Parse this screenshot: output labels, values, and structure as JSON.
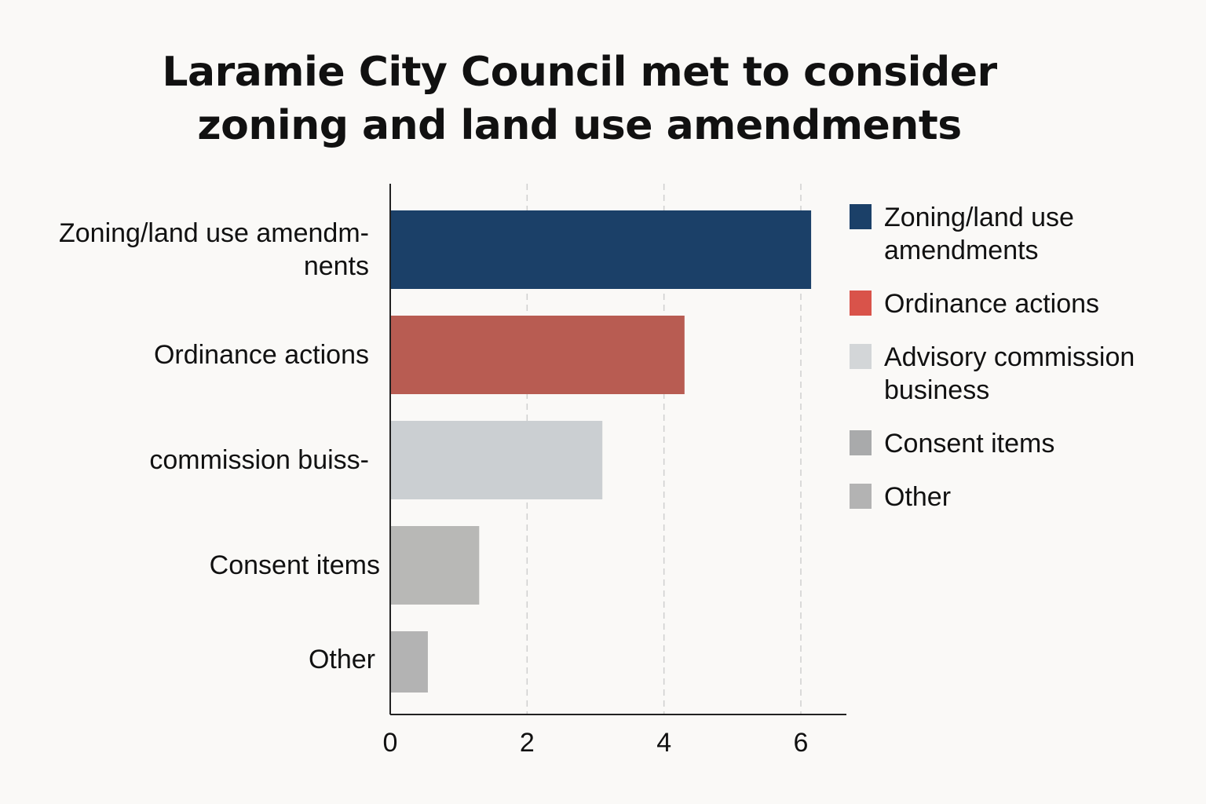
{
  "chart_data": {
    "type": "bar",
    "orientation": "horizontal",
    "title_lines": [
      "Laramie City Council met to consider",
      "zoning and land use amendments"
    ],
    "categories": [
      "Zoning/land use amendm-\nnents",
      "Ordinance actions",
      "commission buiss-",
      "Consent items",
      "Other"
    ],
    "values": [
      6.15,
      4.3,
      3.1,
      1.3,
      0.55
    ],
    "colors": [
      "#1b4068",
      "#b85c52",
      "#cbcfd2",
      "#b8b8b6",
      "#b3b3b3"
    ],
    "xlim": [
      0,
      6.65
    ],
    "xticks": [
      0,
      2,
      4,
      6
    ],
    "grid": "vertical-dashed",
    "legend_position": "right",
    "legend": [
      {
        "label": "Zoning/land use amendments",
        "color": "#1b4068"
      },
      {
        "label": "Ordinance actions",
        "color": "#d9534a"
      },
      {
        "label": "Advisory commission business",
        "color": "#d3d6d8"
      },
      {
        "label": "Consent items",
        "color": "#a9aaab"
      },
      {
        "label": "Other",
        "color": "#b3b3b3"
      }
    ]
  }
}
